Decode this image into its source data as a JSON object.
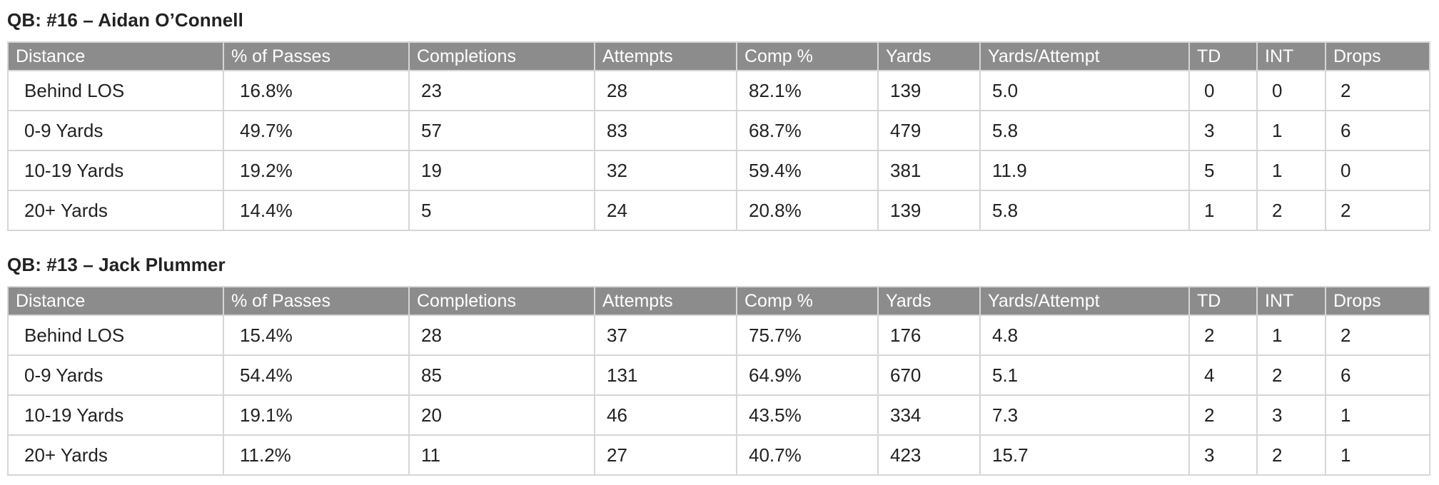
{
  "headers": [
    "Distance",
    "% of Passes",
    "Completions",
    "Attempts",
    "Comp %",
    "Yards",
    "Yards/Attempt",
    "TD",
    "INT",
    "Drops"
  ],
  "sections": [
    {
      "title": "QB: #16 – Aidan O’Connell",
      "rows": [
        [
          "Behind LOS",
          "16.8%",
          "23",
          "28",
          "82.1%",
          "139",
          "5.0",
          "0",
          "0",
          "2"
        ],
        [
          "0-9 Yards",
          "49.7%",
          "57",
          "83",
          "68.7%",
          "479",
          "5.8",
          "3",
          "1",
          "6"
        ],
        [
          "10-19 Yards",
          "19.2%",
          "19",
          "32",
          "59.4%",
          "381",
          "11.9",
          "5",
          "1",
          "0"
        ],
        [
          "20+ Yards",
          "14.4%",
          "5",
          "24",
          "20.8%",
          "139",
          "5.8",
          "1",
          "2",
          "2"
        ]
      ]
    },
    {
      "title": "QB: #13 – Jack Plummer",
      "rows": [
        [
          "Behind LOS",
          "15.4%",
          "28",
          "37",
          "75.7%",
          "176",
          "4.8",
          "2",
          "1",
          "2"
        ],
        [
          "0-9 Yards",
          "54.4%",
          "85",
          "131",
          "64.9%",
          "670",
          "5.1",
          "4",
          "2",
          "6"
        ],
        [
          "10-19 Yards",
          "19.1%",
          "20",
          "46",
          "43.5%",
          "334",
          "7.3",
          "2",
          "3",
          "1"
        ],
        [
          "20+ Yards",
          "11.2%",
          "11",
          "27",
          "40.7%",
          "423",
          "15.7",
          "3",
          "2",
          "1"
        ]
      ]
    }
  ],
  "colors": {
    "header_bg": "#8c8c8c",
    "header_text": "#ffffff",
    "border": "#d6d6d6",
    "text": "#222222"
  }
}
